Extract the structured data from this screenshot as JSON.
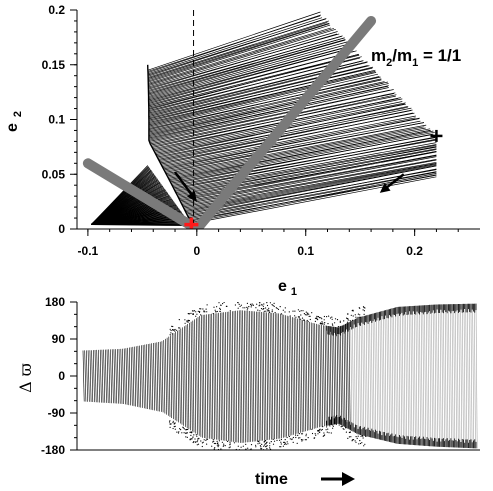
{
  "chart_data": [
    {
      "type": "line",
      "panel": "top",
      "xlabel_main": "e",
      "xlabel_sub": "1",
      "ylabel_main": "e",
      "ylabel_sub": "2",
      "xlim": [
        -0.11,
        0.26
      ],
      "ylim": [
        0,
        0.2
      ],
      "x_ticks": [
        -0.1,
        0,
        0.1,
        0.2
      ],
      "x_tick_labels": [
        "-0.1",
        "0",
        "0.1",
        "0.2"
      ],
      "y_ticks": [
        0,
        0.05,
        0.1,
        0.15,
        0.2
      ],
      "y_tick_labels": [
        "0",
        "0.05",
        "0.1",
        "0.15",
        "0.2"
      ],
      "annotation": {
        "main1": "m",
        "sub1": "2",
        "slash": "/m",
        "sub2": "1",
        "tail": " = 1/1"
      },
      "dashed_line_x": -0.003,
      "gray_lines": [
        {
          "x": [
            -0.1,
            0.0
          ],
          "y": [
            0.06,
            0.0
          ]
        },
        {
          "x": [
            0.0,
            0.16
          ],
          "y": [
            0.0,
            0.19
          ]
        }
      ],
      "start_point": {
        "x": 0.22,
        "y": 0.085
      },
      "end_point": {
        "x": -0.005,
        "y": 0.004
      },
      "arrows": [
        {
          "from": [
            -0.02,
            0.052
          ],
          "to": [
            0.0,
            0.025
          ]
        },
        {
          "from": [
            0.19,
            0.05
          ],
          "to": [
            0.168,
            0.033
          ]
        }
      ]
    },
    {
      "type": "scatter",
      "panel": "bottom",
      "xlabel": "time",
      "ylabel": "Δ ϖ",
      "ylim": [
        -180,
        180
      ],
      "y_ticks": [
        -180,
        -90,
        0,
        90,
        180
      ],
      "y_tick_labels": [
        "-180",
        "-90",
        "0",
        "90",
        "180"
      ],
      "envelope": {
        "time": [
          0.0,
          0.1,
          0.2,
          0.3,
          0.4,
          0.5,
          0.6,
          0.65,
          0.7,
          0.8,
          0.9,
          1.0
        ],
        "upper": [
          62,
          66,
          84,
          148,
          160,
          152,
          125,
          118,
          142,
          168,
          174,
          176
        ],
        "lower": [
          -62,
          -68,
          -88,
          -150,
          -163,
          -152,
          -124,
          -116,
          -142,
          -165,
          -172,
          -176
        ]
      }
    }
  ],
  "colors": {
    "gray_line": "#7a7a7a",
    "data": "#000000",
    "end_marker": "#ff1a1a"
  }
}
